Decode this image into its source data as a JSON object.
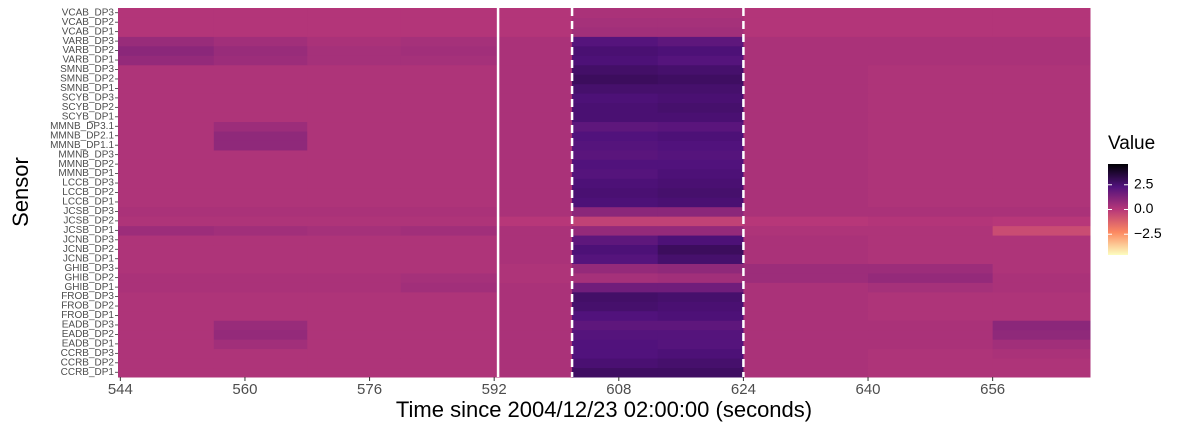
{
  "chart_data": {
    "type": "heatmap",
    "x_label": "Time since 2004/12/23 02:00:00 (seconds)",
    "y_label": "Sensor",
    "legend_title": "Value",
    "xlim": [
      543.7,
      668.5
    ],
    "xticks": [
      544,
      560,
      576,
      592,
      608,
      624,
      640,
      656
    ],
    "xbins": [
      543.7,
      556,
      568,
      580,
      592.5,
      602,
      613,
      624,
      640,
      656,
      668.5
    ],
    "y": [
      "CCRB_DP1",
      "CCRB_DP2",
      "CCRB_DP3",
      "EADB_DP1",
      "EADB_DP2",
      "EADB_DP3",
      "FROB_DP1",
      "FROB_DP2",
      "FROB_DP3",
      "GHIB_DP1",
      "GHIB_DP2",
      "GHIB_DP3",
      "JCNB_DP1",
      "JCNB_DP2",
      "JCNB_DP3",
      "JCSB_DP1",
      "JCSB_DP2",
      "JCSB_DP3",
      "LCCB_DP1",
      "LCCB_DP2",
      "LCCB_DP3",
      "MMNB_DP1",
      "MMNB_DP2",
      "MMNB_DP3",
      "MMNB_DP1.1",
      "MMNB_DP2.1",
      "MMNB_DP3.1",
      "SCYB_DP1",
      "SCYB_DP2",
      "SCYB_DP3",
      "SMNB_DP1",
      "SMNB_DP2",
      "SMNB_DP3",
      "VARB_DP1",
      "VARB_DP2",
      "VARB_DP3",
      "VCAB_DP1",
      "VCAB_DP2",
      "VCAB_DP3"
    ],
    "values": [
      [
        0.2,
        0.2,
        0.2,
        0.2,
        0.3,
        2.8,
        2.8,
        0.3,
        0.2,
        0.2
      ],
      [
        0.2,
        0.2,
        0.2,
        0.2,
        0.3,
        2.5,
        2.6,
        0.3,
        0.2,
        0.2
      ],
      [
        0.2,
        0.2,
        0.2,
        0.2,
        0.3,
        2.3,
        2.4,
        0.3,
        0.2,
        0.3
      ],
      [
        0.2,
        0.5,
        0.2,
        0.2,
        0.3,
        2.3,
        2.2,
        0.3,
        0.3,
        0.5
      ],
      [
        0.2,
        0.8,
        0.2,
        0.2,
        0.3,
        2.2,
        2.2,
        0.3,
        0.3,
        0.9
      ],
      [
        0.2,
        0.7,
        0.2,
        0.2,
        0.3,
        2.0,
        2.0,
        0.3,
        0.3,
        1.0
      ],
      [
        0.2,
        0.2,
        0.2,
        0.2,
        0.3,
        2.3,
        2.4,
        0.3,
        0.2,
        0.2
      ],
      [
        0.2,
        0.2,
        0.2,
        0.2,
        0.3,
        2.6,
        2.5,
        0.3,
        0.2,
        0.2
      ],
      [
        0.2,
        0.2,
        0.2,
        0.2,
        0.3,
        2.7,
        2.6,
        0.3,
        0.2,
        0.2
      ],
      [
        0.3,
        0.3,
        0.3,
        0.5,
        0.3,
        1.6,
        1.6,
        0.3,
        0.4,
        0.3
      ],
      [
        0.3,
        0.3,
        0.3,
        0.4,
        0.2,
        0.4,
        0.5,
        0.6,
        0.8,
        0.3
      ],
      [
        0.2,
        0.2,
        0.2,
        0.2,
        0.2,
        0.8,
        0.9,
        0.6,
        0.6,
        0.2
      ],
      [
        0.2,
        0.2,
        0.2,
        0.2,
        0.3,
        2.2,
        2.6,
        0.3,
        0.2,
        0.2
      ],
      [
        0.2,
        0.2,
        0.2,
        0.2,
        0.3,
        2.4,
        2.9,
        0.3,
        0.2,
        0.2
      ],
      [
        0.2,
        0.2,
        0.2,
        0.2,
        0.3,
        2.0,
        2.4,
        0.3,
        0.2,
        0.2
      ],
      [
        0.6,
        0.5,
        0.4,
        0.5,
        0.3,
        0.8,
        0.8,
        0.2,
        0.2,
        -0.6
      ],
      [
        0.2,
        0.2,
        0.2,
        0.2,
        0.0,
        -0.3,
        -0.3,
        0.0,
        0.1,
        0.0
      ],
      [
        0.3,
        0.3,
        0.3,
        0.3,
        0.3,
        1.0,
        1.0,
        0.3,
        0.3,
        0.3
      ],
      [
        0.2,
        0.2,
        0.2,
        0.2,
        0.3,
        2.4,
        2.5,
        0.3,
        0.2,
        0.2
      ],
      [
        0.2,
        0.2,
        0.2,
        0.2,
        0.3,
        2.5,
        2.6,
        0.3,
        0.2,
        0.2
      ],
      [
        0.2,
        0.2,
        0.2,
        0.2,
        0.3,
        2.4,
        2.5,
        0.3,
        0.2,
        0.2
      ],
      [
        0.2,
        0.2,
        0.2,
        0.2,
        0.3,
        2.2,
        2.4,
        0.3,
        0.2,
        0.2
      ],
      [
        0.2,
        0.2,
        0.2,
        0.2,
        0.3,
        2.3,
        2.3,
        0.3,
        0.2,
        0.2
      ],
      [
        0.2,
        0.2,
        0.2,
        0.2,
        0.3,
        2.1,
        2.2,
        0.3,
        0.2,
        0.2
      ],
      [
        0.2,
        0.9,
        0.2,
        0.2,
        0.3,
        2.2,
        2.3,
        0.3,
        0.2,
        0.2
      ],
      [
        0.2,
        0.9,
        0.2,
        0.2,
        0.3,
        2.3,
        2.4,
        0.3,
        0.2,
        0.2
      ],
      [
        0.2,
        0.6,
        0.2,
        0.2,
        0.3,
        2.0,
        2.1,
        0.3,
        0.2,
        0.2
      ],
      [
        0.2,
        0.2,
        0.2,
        0.2,
        0.3,
        2.5,
        2.5,
        0.3,
        0.2,
        0.2
      ],
      [
        0.2,
        0.2,
        0.2,
        0.2,
        0.3,
        2.5,
        2.6,
        0.3,
        0.2,
        0.2
      ],
      [
        0.2,
        0.2,
        0.2,
        0.2,
        0.3,
        2.4,
        2.5,
        0.3,
        0.2,
        0.2
      ],
      [
        0.2,
        0.2,
        0.2,
        0.2,
        0.3,
        2.6,
        2.6,
        0.3,
        0.2,
        0.2
      ],
      [
        0.2,
        0.2,
        0.2,
        0.2,
        0.3,
        2.9,
        2.8,
        0.3,
        0.2,
        0.2
      ],
      [
        0.2,
        0.2,
        0.2,
        0.2,
        0.3,
        2.7,
        2.6,
        0.3,
        0.2,
        0.2
      ],
      [
        0.8,
        0.6,
        0.4,
        0.4,
        0.3,
        2.4,
        2.2,
        0.3,
        0.3,
        0.3
      ],
      [
        1.0,
        0.7,
        0.4,
        0.5,
        0.3,
        2.5,
        2.4,
        0.3,
        0.3,
        0.3
      ],
      [
        0.7,
        0.5,
        0.3,
        0.4,
        0.3,
        2.2,
        2.0,
        0.3,
        0.3,
        0.3
      ],
      [
        0.1,
        0.1,
        0.1,
        0.1,
        0.1,
        0.5,
        0.5,
        0.1,
        0.1,
        0.1
      ],
      [
        0.1,
        0.1,
        0.1,
        0.1,
        0.1,
        0.4,
        0.4,
        0.1,
        0.1,
        0.1
      ],
      [
        0.1,
        0.1,
        0.1,
        0.1,
        0.1,
        0.3,
        0.3,
        0.1,
        0.1,
        0.1
      ]
    ],
    "vlines": [
      {
        "x": 592.5,
        "dashed": false
      },
      {
        "x": 602,
        "dashed": true
      },
      {
        "x": 624,
        "dashed": true
      }
    ],
    "clim": [
      -4.6,
      4.6
    ],
    "cticks": [
      2.5,
      {
        "value": 0,
        "label": "0.0"
      },
      {
        "value": -2.5,
        "label": "−2.5"
      }
    ],
    "colors": [
      "#fcfdbf",
      "#fc8961",
      "#b73779",
      "#51127c",
      "#000004"
    ]
  }
}
